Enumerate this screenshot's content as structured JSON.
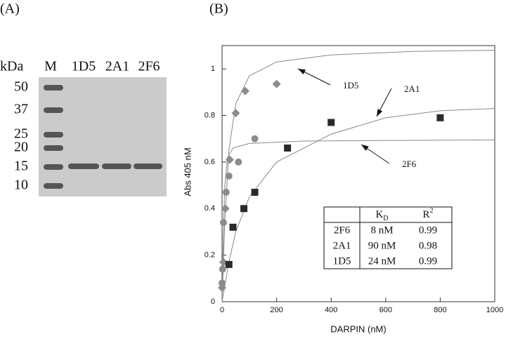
{
  "gel": {
    "panel": "(A)",
    "unit": "kDa",
    "lanes": [
      "M",
      "1D5",
      "2A1",
      "2F6"
    ],
    "markers": [
      50,
      37,
      25,
      20,
      15,
      10
    ]
  },
  "chart_data": {
    "type": "scatter",
    "panel": "(B)",
    "x_label": "DARPIN (nM)",
    "y_label": "Abs 405 nM",
    "xlim": [
      0,
      1000
    ],
    "ylim": [
      0,
      1.1
    ],
    "xticks": [
      0,
      200,
      400,
      600,
      800,
      1000
    ],
    "yticks": [
      0,
      0.2,
      0.4,
      0.6,
      0.8,
      1
    ],
    "series": [
      {
        "name": "1D5",
        "color": "#8c8c8c",
        "marker": "diamond",
        "x": [
          0,
          5,
          12,
          28,
          50,
          85,
          200
        ],
        "values": [
          0.06,
          0.17,
          0.4,
          0.61,
          0.81,
          0.905,
          0.935
        ]
      },
      {
        "name": "2A1",
        "color": "#2a2a2a",
        "marker": "square",
        "x": [
          25,
          40,
          80,
          120,
          240,
          400,
          800
        ],
        "values": [
          0.16,
          0.32,
          0.4,
          0.47,
          0.66,
          0.77,
          0.79
        ]
      },
      {
        "name": "2F6",
        "color": "#8c8c8c",
        "marker": "circle",
        "x": [
          0,
          2,
          5,
          15,
          25,
          60,
          120
        ],
        "values": [
          0.08,
          0.14,
          0.34,
          0.47,
          0.54,
          0.6,
          0.7
        ]
      }
    ],
    "fits": [
      {
        "color": "#888888",
        "x": [
          0,
          10,
          25,
          50,
          100,
          200,
          400,
          700,
          1000
        ],
        "values": [
          0,
          0.35,
          0.65,
          0.85,
          0.97,
          1.03,
          1.06,
          1.075,
          1.08
        ]
      },
      {
        "color": "#888888",
        "x": [
          0,
          25,
          50,
          100,
          200,
          400,
          600,
          800,
          1000
        ],
        "values": [
          0,
          0.17,
          0.3,
          0.45,
          0.6,
          0.72,
          0.79,
          0.82,
          0.83
        ]
      },
      {
        "color": "#888888",
        "x": [
          0,
          5,
          10,
          20,
          40,
          100,
          300,
          1000
        ],
        "values": [
          0,
          0.3,
          0.5,
          0.62,
          0.66,
          0.68,
          0.69,
          0.695
        ]
      }
    ]
  },
  "table": {
    "header": [
      "",
      {
        "main": "K",
        "sub": "D"
      },
      {
        "main": "R",
        "sup": "2"
      }
    ],
    "rows": [
      [
        "2F6",
        "8 nM",
        "0.99"
      ],
      [
        "2A1",
        "90 nM",
        "0.98"
      ],
      [
        "1D5",
        "24 nM",
        "0.99"
      ]
    ]
  }
}
